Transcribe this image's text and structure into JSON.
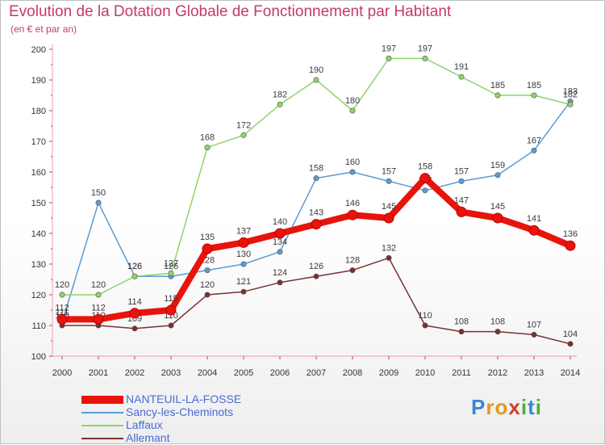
{
  "header": {
    "title": "Evolution de la Dotation Globale de Fonctionnement par Habitant",
    "subtitle": "(en € et par an)"
  },
  "logo": {
    "text": "Proxiti"
  },
  "chart_data": {
    "type": "line",
    "x": [
      "2000",
      "2001",
      "2002",
      "2003",
      "2004",
      "2005",
      "2006",
      "2007",
      "2008",
      "2009",
      "2010",
      "2011",
      "2012",
      "2013",
      "2014"
    ],
    "ylim": [
      100,
      200
    ],
    "yticks": [
      100,
      110,
      120,
      130,
      140,
      150,
      160,
      170,
      180,
      190,
      200
    ],
    "grid": false,
    "legend": "bottom-left",
    "series": [
      {
        "name": "Sancy-les-Cheminots",
        "color": "#5b9bd5",
        "values": [
          111,
          150,
          126,
          126,
          128,
          130,
          134,
          158,
          160,
          157,
          154,
          157,
          159,
          167,
          183
        ]
      },
      {
        "name": "Laffaux",
        "color": "#8fd46a",
        "values": [
          120,
          120,
          126,
          127,
          168,
          172,
          182,
          190,
          180,
          197,
          197,
          191,
          185,
          185,
          182
        ]
      },
      {
        "name": "Allemant",
        "color": "#7a3030",
        "values": [
          110,
          110,
          109,
          110,
          120,
          121,
          124,
          126,
          128,
          132,
          110,
          108,
          108,
          107,
          104
        ]
      },
      {
        "name": "NANTEUIL-LA-FOSSE",
        "color": "#e8140c",
        "values": [
          112,
          112,
          114,
          115,
          135,
          137,
          140,
          143,
          146,
          145,
          158,
          147,
          145,
          141,
          136
        ]
      }
    ]
  }
}
